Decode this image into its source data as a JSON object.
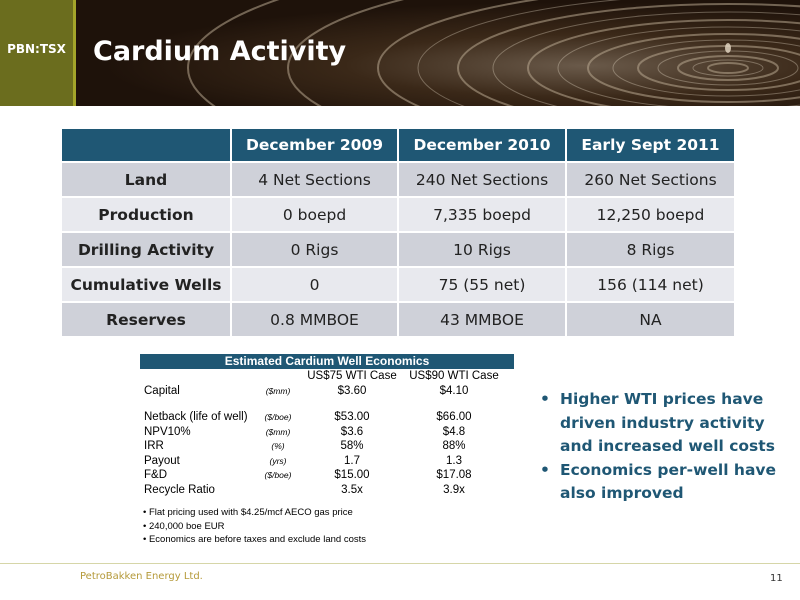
{
  "header": {
    "ticker": "PBN:TSX",
    "title": "Cardium Activity"
  },
  "main_table": {
    "columns": [
      "",
      "December 2009",
      "December 2010",
      "Early Sept 2011"
    ],
    "rows": [
      {
        "label": "Land",
        "values": [
          "4 Net Sections",
          "240 Net Sections",
          "260 Net Sections"
        ]
      },
      {
        "label": "Production",
        "values": [
          "0 boepd",
          "7,335 boepd",
          "12,250 boepd"
        ]
      },
      {
        "label": "Drilling Activity",
        "values": [
          "0 Rigs",
          "10 Rigs",
          "8 Rigs"
        ]
      },
      {
        "label": "Cumulative Wells",
        "values": [
          "0",
          "75 (55 net)",
          "156 (114 net)"
        ]
      },
      {
        "label": "Reserves",
        "values": [
          "0.8 MMBOE",
          "43 MMBOE",
          "NA"
        ]
      }
    ]
  },
  "economics": {
    "title": "Estimated Cardium Well Economics",
    "case1": "US$75 WTI Case",
    "case2": "US$90 WTI Case",
    "rows": [
      {
        "label": "Capital",
        "unit": "($mm)",
        "v1": "$3.60",
        "v2": "$4.10"
      },
      {
        "label": "Netback (life of well)",
        "unit": "($/boe)",
        "v1": "$53.00",
        "v2": "$66.00"
      },
      {
        "label": "NPV10%",
        "unit": "($mm)",
        "v1": "$3.6",
        "v2": "$4.8"
      },
      {
        "label": "IRR",
        "unit": "(%)",
        "v1": "58%",
        "v2": "88%"
      },
      {
        "label": "Payout",
        "unit": "(yrs)",
        "v1": "1.7",
        "v2": "1.3"
      },
      {
        "label": "F&D",
        "unit": "($/boe)",
        "v1": "$15.00",
        "v2": "$17.08"
      },
      {
        "label": "Recycle Ratio",
        "unit": "",
        "v1": "3.5x",
        "v2": "3.9x"
      }
    ],
    "notes": [
      "Flat pricing used with $4.25/mcf AECO gas price",
      "240,000 boe EUR",
      "Economics are before taxes and exclude land costs"
    ]
  },
  "bullets": [
    "Higher WTI prices have driven industry activity and increased well costs",
    "Economics per-well have  also improved"
  ],
  "footer": {
    "company": "PetroBakken Energy Ltd.",
    "page": "11"
  },
  "colors": {
    "accent": "#1f5774",
    "ticker_bg": "#6b6d1e",
    "row_dark": "#cfd1d9",
    "row_light": "#e8e9ee"
  }
}
